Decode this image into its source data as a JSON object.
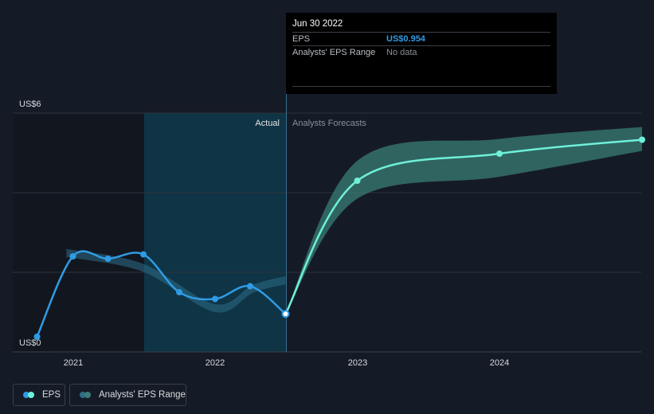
{
  "tooltip": {
    "date": "Jun 30 2022",
    "rows": [
      {
        "label": "EPS",
        "value": "US$0.954"
      },
      {
        "label": "Analysts' EPS Range",
        "value": "No data"
      }
    ]
  },
  "legend": {
    "eps_label": "EPS",
    "range_label": "Analysts' EPS Range"
  },
  "colors": {
    "actual_line": "#2f9be5",
    "forecast_line": "#6ef0d8",
    "forecast_band": "#3a7d76",
    "actual_band": "#2e6d88",
    "shaded_region": "#0f3445",
    "background": "#151b26"
  },
  "chart_data": {
    "type": "line",
    "y_tick_labels": [
      "US$6",
      "US$0"
    ],
    "ylim": [
      0,
      6
    ],
    "x_tick_labels": [
      "2021",
      "2022",
      "2023",
      "2024"
    ],
    "region_labels": {
      "actual": "Actual",
      "forecast": "Analysts Forecasts"
    },
    "grid": true,
    "series": [
      {
        "name": "EPS",
        "points": [
          {
            "x": "2020-09-30",
            "y": 0.38
          },
          {
            "x": "2020-12-31",
            "y": 2.4
          },
          {
            "x": "2021-03-31",
            "y": 2.34
          },
          {
            "x": "2021-06-30",
            "y": 2.45
          },
          {
            "x": "2021-09-30",
            "y": 1.5
          },
          {
            "x": "2021-12-31",
            "y": 1.33
          },
          {
            "x": "2022-03-31",
            "y": 1.65
          },
          {
            "x": "2022-06-30",
            "y": 0.954
          }
        ]
      },
      {
        "name": "EPS Forecast",
        "points": [
          {
            "x": "2022-06-30",
            "y": 0.954
          },
          {
            "x": "2022-12-31",
            "y": 4.3
          },
          {
            "x": "2023-12-31",
            "y": 4.98
          },
          {
            "x": "2024-12-31",
            "y": 5.33
          }
        ]
      },
      {
        "name": "Analysts' EPS Range",
        "low": [
          {
            "x": "2022-06-30",
            "y": 0.954
          },
          {
            "x": "2022-12-31",
            "y": 3.85
          },
          {
            "x": "2023-12-31",
            "y": 4.4
          },
          {
            "x": "2024-12-31",
            "y": 5.05
          }
        ],
        "high": [
          {
            "x": "2022-06-30",
            "y": 0.954
          },
          {
            "x": "2022-12-31",
            "y": 4.8
          },
          {
            "x": "2023-12-31",
            "y": 5.35
          },
          {
            "x": "2024-12-31",
            "y": 5.65
          }
        ]
      }
    ]
  }
}
